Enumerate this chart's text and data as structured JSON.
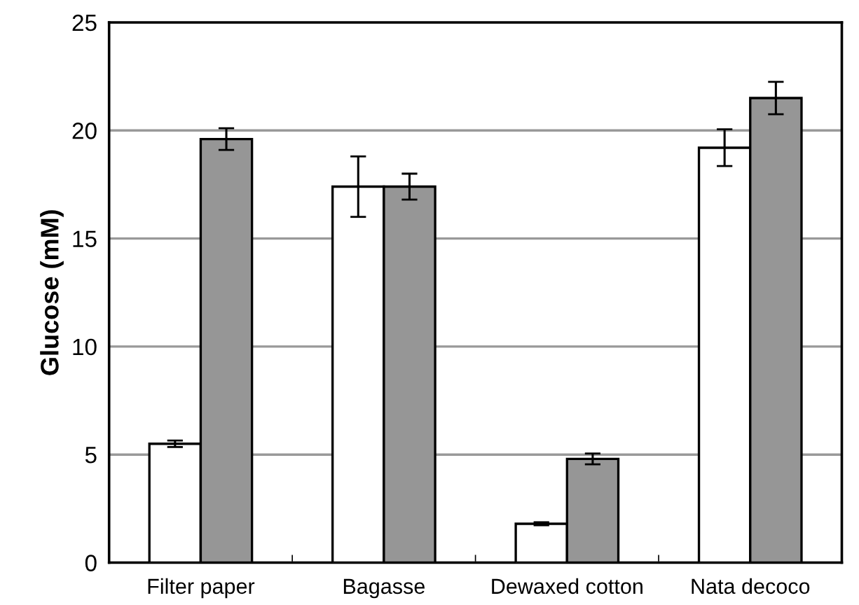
{
  "chart_data": {
    "type": "bar",
    "ylabel": "Glucose (mM)",
    "categories": [
      "Filter paper",
      "Bagasse",
      "Dewaxed cotton",
      "Nata decoco"
    ],
    "series": [
      {
        "color": "#ffffff",
        "values": [
          5.5,
          17.4,
          1.8,
          19.2
        ],
        "errors": [
          0.15,
          1.4,
          0.07,
          0.85
        ]
      },
      {
        "color": "#969696",
        "values": [
          19.6,
          17.4,
          4.8,
          21.5
        ],
        "errors": [
          0.5,
          0.6,
          0.25,
          0.75
        ]
      }
    ],
    "ylim": [
      0,
      25
    ],
    "yticks": [
      0,
      5,
      10,
      15,
      20,
      25
    ],
    "grid": "y",
    "legend": false
  }
}
